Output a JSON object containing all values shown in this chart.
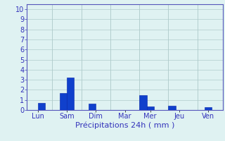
{
  "bars": [
    {
      "x": 2,
      "height": 0.7
    },
    {
      "x": 5,
      "height": 1.65
    },
    {
      "x": 6,
      "height": 3.2
    },
    {
      "x": 9,
      "height": 0.6
    },
    {
      "x": 16,
      "height": 1.5
    },
    {
      "x": 17,
      "height": 0.35
    },
    {
      "x": 20,
      "height": 0.4
    },
    {
      "x": 25,
      "height": 0.3
    }
  ],
  "day_tick_positions": [
    1.5,
    5.5,
    9.5,
    13.5,
    17.0,
    21.0,
    25.0
  ],
  "day_labels": [
    "Lun",
    "Sam",
    "Dim",
    "Mar",
    "Mer",
    "Jeu",
    "Ven"
  ],
  "day_dividers": [
    3.5,
    7.5,
    11.5,
    15.5,
    19.5,
    23.5
  ],
  "bar_color": "#1040cc",
  "bar_edge_color": "#0020aa",
  "background_color": "#dff2f2",
  "grid_color": "#b0cccc",
  "axis_color": "#5555bb",
  "text_color": "#3333bb",
  "yticks": [
    0,
    1,
    2,
    3,
    4,
    5,
    6,
    7,
    8,
    9,
    10
  ],
  "ylim": [
    0,
    10.5
  ],
  "xlim": [
    0,
    27
  ],
  "xlabel": "Précipitations 24h ( mm )",
  "xlabel_fontsize": 8,
  "tick_fontsize": 7,
  "bar_width": 1.0
}
